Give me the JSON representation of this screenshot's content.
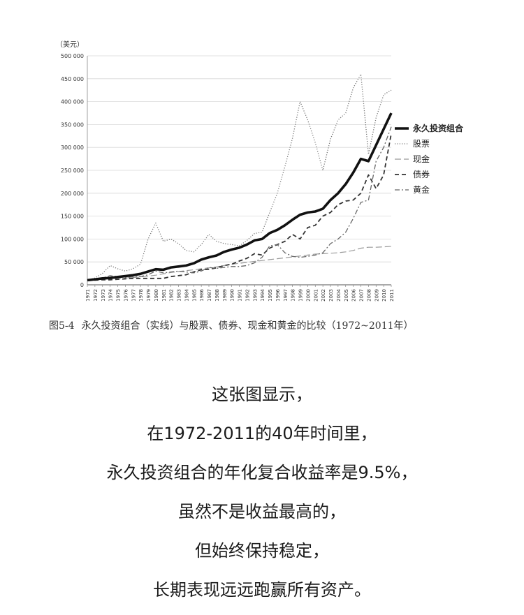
{
  "chart_data": {
    "type": "line",
    "unit_label": "（美元）",
    "ylim": [
      0,
      500000
    ],
    "y_ticks": [
      "0",
      "50 000",
      "100 000",
      "150 000",
      "200 000",
      "250 000",
      "300 000",
      "350 000",
      "400 000",
      "450 000",
      "500 000"
    ],
    "x_ticks": [
      "1971",
      "1972",
      "1973",
      "1974",
      "1975",
      "1976",
      "1977",
      "1978",
      "1979",
      "1980",
      "1981",
      "1982",
      "1983",
      "1984",
      "1985",
      "1986",
      "1987",
      "1988",
      "1989",
      "1990",
      "1991",
      "1992",
      "1993",
      "1994",
      "1995",
      "1996",
      "1997",
      "1998",
      "1999",
      "2000",
      "2001",
      "2002",
      "2003",
      "2004",
      "2005",
      "2006",
      "2007",
      "2008",
      "2009",
      "2010",
      "2011"
    ],
    "grid": true,
    "legend_position": "right",
    "series": [
      {
        "name": "永久投资组合",
        "style": "thick-solid",
        "color": "#111111",
        "values": [
          10000,
          12000,
          14000,
          15000,
          17000,
          19000,
          21000,
          24000,
          29000,
          34000,
          33000,
          38000,
          40000,
          42000,
          47000,
          55000,
          60000,
          64000,
          72000,
          77000,
          81000,
          88000,
          97000,
          100000,
          113000,
          120000,
          130000,
          142000,
          153000,
          158000,
          160000,
          166000,
          185000,
          200000,
          220000,
          245000,
          275000,
          270000,
          305000,
          340000,
          375000
        ]
      },
      {
        "name": "股票",
        "style": "dotted",
        "color": "#777777",
        "values": [
          10000,
          15000,
          25000,
          42000,
          35000,
          30000,
          35000,
          45000,
          100000,
          135000,
          95000,
          100000,
          90000,
          75000,
          72000,
          88000,
          110000,
          95000,
          90000,
          88000,
          85000,
          97000,
          112000,
          115000,
          158000,
          200000,
          258000,
          320000,
          400000,
          360000,
          310000,
          250000,
          318000,
          360000,
          375000,
          430000,
          460000,
          285000,
          365000,
          415000,
          425000
        ]
      },
      {
        "name": "现金",
        "style": "long-dash",
        "color": "#999999",
        "values": [
          10000,
          11000,
          12000,
          13000,
          14000,
          15000,
          16000,
          17000,
          19000,
          21000,
          24000,
          27000,
          29000,
          31000,
          33000,
          35000,
          37000,
          39000,
          42000,
          45000,
          47000,
          49000,
          51000,
          53000,
          55000,
          57000,
          59000,
          61000,
          63000,
          65000,
          67000,
          68000,
          69000,
          70000,
          72000,
          75000,
          80000,
          82000,
          82000,
          83000,
          84000
        ]
      },
      {
        "name": "债券",
        "style": "dash",
        "color": "#333333",
        "values": [
          10000,
          10000,
          11000,
          11000,
          12000,
          13000,
          14000,
          14000,
          14000,
          14000,
          14000,
          18000,
          20000,
          22000,
          28000,
          33000,
          34000,
          37000,
          42000,
          45000,
          52000,
          58000,
          68000,
          65000,
          80000,
          88000,
          95000,
          110000,
          100000,
          125000,
          130000,
          150000,
          158000,
          175000,
          183000,
          185000,
          200000,
          240000,
          210000,
          240000,
          330000
        ]
      },
      {
        "name": "黄金",
        "style": "dash-dot",
        "color": "#666666",
        "values": [
          10000,
          12000,
          15000,
          20000,
          18000,
          16000,
          17000,
          18000,
          22000,
          30000,
          26000,
          28000,
          30000,
          28000,
          26000,
          30000,
          38000,
          36000,
          38000,
          40000,
          40000,
          42000,
          48000,
          60000,
          85000,
          88000,
          70000,
          62000,
          60000,
          62000,
          65000,
          70000,
          90000,
          100000,
          115000,
          145000,
          180000,
          185000,
          270000,
          300000,
          345000
        ]
      }
    ]
  },
  "caption": {
    "figure_number": "图5-4",
    "text": "永久投资组合（实线）与股票、债券、现金和黄金的比较（1972~2011年）"
  },
  "body_lines": [
    "这张图显示，",
    "在1972-2011的40年时间里，",
    "永久投资组合的年化复合收益率是9.5%，",
    "虽然不是收益最高的，",
    "但始终保持稳定，",
    "长期表现远远跑赢所有资产。"
  ]
}
